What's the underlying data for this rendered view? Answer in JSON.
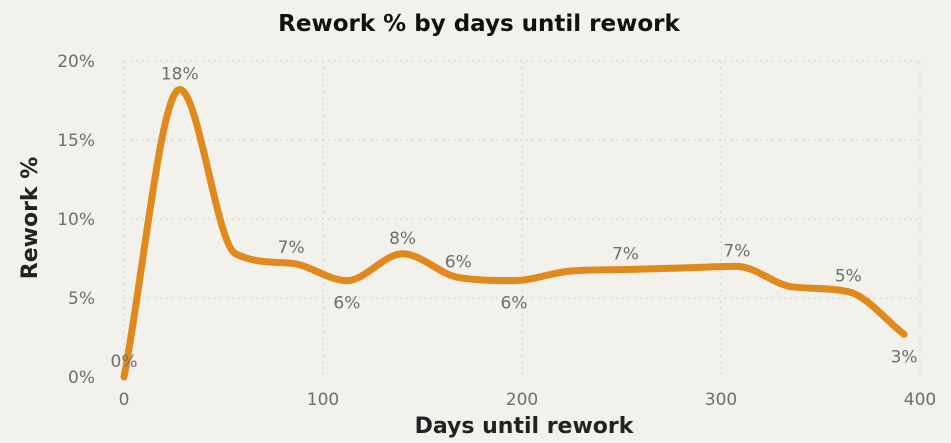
{
  "chart_data": {
    "type": "line",
    "title": "Rework % by days until rework",
    "xlabel": "Days until rework",
    "ylabel": "Rework %",
    "xlim": [
      0,
      400
    ],
    "ylim": [
      0,
      20
    ],
    "x_ticks": [
      0,
      100,
      200,
      300,
      400
    ],
    "x_tick_labels": [
      "0",
      "100",
      "200",
      "300",
      "400"
    ],
    "y_ticks": [
      0,
      5,
      10,
      15,
      20
    ],
    "y_tick_labels": [
      "0%",
      "5%",
      "10%",
      "15%",
      "20%"
    ],
    "grid": true,
    "line_color": "#e08a1e",
    "series": [
      {
        "x": [
          0,
          28,
          56,
          84,
          112,
          140,
          168,
          196,
          224,
          252,
          280,
          308,
          336,
          364,
          392
        ],
        "y": [
          0,
          18.2,
          7.8,
          7.2,
          6.1,
          7.8,
          6.3,
          6.1,
          6.7,
          6.8,
          6.9,
          7.0,
          5.7,
          5.4,
          2.7
        ],
        "labels": [
          "0%",
          "18%",
          "",
          "7%",
          "6%",
          "8%",
          "6%",
          "6%",
          "",
          "7%",
          "",
          "7%",
          "",
          "5%",
          "3%"
        ],
        "label_pos": [
          "above",
          "above",
          "above",
          "above",
          "below",
          "above",
          "above",
          "below",
          "above",
          "above",
          "above",
          "above",
          "above",
          "above",
          "below"
        ]
      }
    ]
  }
}
